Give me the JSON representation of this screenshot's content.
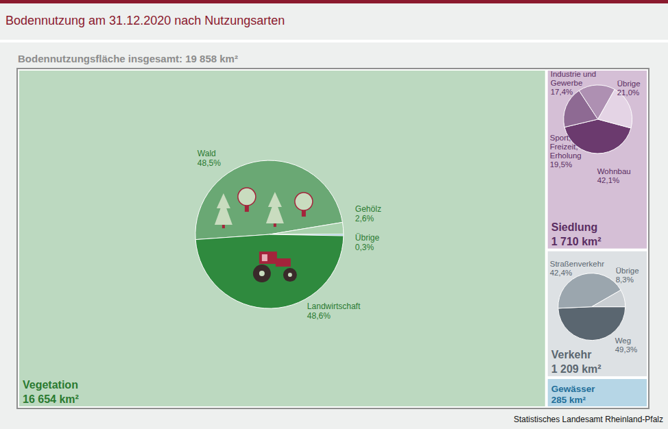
{
  "chart_data": {
    "type": "treemap",
    "title": "Bodennutzung am 31.12.2020 nach Nutzungsarten",
    "subtitle": "Bodennutzungsfläche insgesamt: 19 858 km²",
    "total": 19858,
    "source": "Statistisches Landesamt Rheinland-Pfalz",
    "categories": [
      "Vegetation",
      "Siedlung",
      "Verkehr",
      "Gewässer"
    ],
    "values": [
      16654,
      1710,
      1209,
      285
    ],
    "value_labels": [
      "16 654 km²",
      "1 710 km²",
      "1 209 km²",
      "285 km²"
    ],
    "colors": [
      "#bcd9c0",
      "#d5bfd6",
      "#dde1e4",
      "#b6d6e6"
    ],
    "breakdowns": [
      {
        "type": "pie",
        "categories": [
          "Wald",
          "Gehölz",
          "Übrige",
          "Landwirtschaft"
        ],
        "values": [
          48.5,
          2.6,
          0.3,
          48.6
        ],
        "value_labels": [
          "48,5%",
          "2,6%",
          "0,3%",
          "48,6%"
        ],
        "colors": [
          "#6aa874",
          "#a9d1ad",
          "#5b9bd5",
          "#2f8a3e"
        ]
      },
      {
        "type": "pie",
        "categories": [
          "Wohnbau",
          "Sport, Freizeit, Erholung",
          "Industrie und Gewerbe",
          "Übrige"
        ],
        "values": [
          42.1,
          19.5,
          17.4,
          21.0
        ],
        "value_labels": [
          "42,1%",
          "19,5%",
          "17,4%",
          "21,0%"
        ],
        "colors": [
          "#6b3a6e",
          "#8e6a93",
          "#ae90b2",
          "#e4d4e5"
        ]
      },
      {
        "type": "pie",
        "categories": [
          "Weg",
          "Straßenverkehr",
          "Übrige"
        ],
        "values": [
          49.3,
          42.4,
          8.3
        ],
        "value_labels": [
          "49,3%",
          "42,4%",
          "8,3%"
        ],
        "colors": [
          "#5a6670",
          "#9ba6ae",
          "#c9ced2"
        ]
      },
      null
    ]
  }
}
